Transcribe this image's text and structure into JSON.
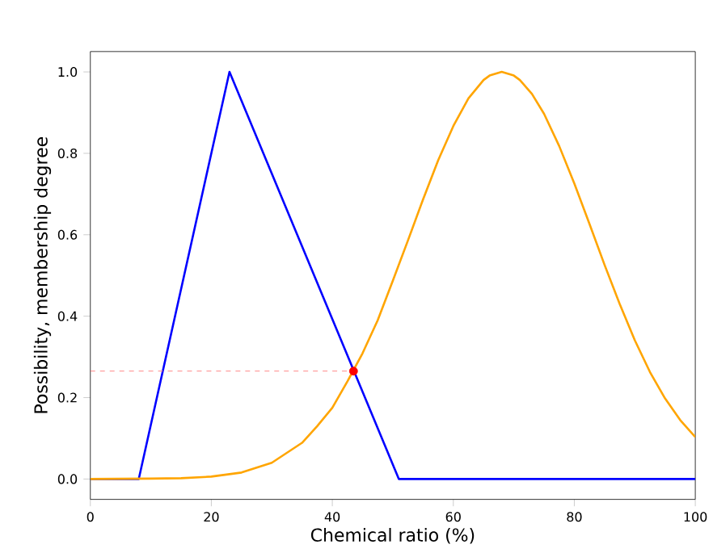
{
  "chart_data": {
    "type": "line",
    "xlabel": "Chemical ratio (%)",
    "ylabel": "Possibility, membership degree",
    "xlim": [
      0,
      100
    ],
    "ylim": [
      -0.05,
      1.05
    ],
    "xticks": [
      0,
      20,
      40,
      60,
      80,
      100
    ],
    "yticks": [
      {
        "value": 0,
        "label": "0.0"
      },
      {
        "value": 0.2,
        "label": "0.2"
      },
      {
        "value": 0.4,
        "label": "0.4"
      },
      {
        "value": 0.6,
        "label": "0.6"
      },
      {
        "value": 0.8,
        "label": "0.8"
      },
      {
        "value": 1,
        "label": "1.0"
      }
    ],
    "grid": false,
    "series": [
      {
        "color": "#0000ff",
        "x": [
          0,
          8,
          23,
          51,
          100
        ],
        "values": [
          0,
          0,
          1,
          0,
          0
        ]
      },
      {
        "color": "#ffa500",
        "x": [
          0,
          10,
          15,
          20,
          25,
          30,
          35,
          37.5,
          40,
          42.5,
          45,
          47.5,
          50,
          52.5,
          55,
          57.5,
          60,
          62.5,
          65,
          66,
          68,
          70,
          71,
          73,
          75,
          77.5,
          80,
          82.5,
          85,
          87.5,
          90,
          92.5,
          95,
          97.5,
          100
        ],
        "values": [
          0,
          0.001,
          0.002,
          0.006,
          0.016,
          0.04,
          0.089,
          0.13,
          0.175,
          0.24,
          0.309,
          0.39,
          0.487,
          0.586,
          0.687,
          0.783,
          0.867,
          0.935,
          0.98,
          0.991,
          1,
          0.991,
          0.98,
          0.946,
          0.897,
          0.818,
          0.726,
          0.627,
          0.526,
          0.43,
          0.341,
          0.263,
          0.198,
          0.145,
          0.103
        ]
      },
      {
        "color": "#ff8080",
        "line_style": "dashed",
        "x": [
          0,
          43.5
        ],
        "values": [
          0.265,
          0.265
        ]
      },
      {
        "type": "scatter",
        "color": "#ff0000",
        "marker": "circle",
        "x": [
          43.5
        ],
        "values": [
          0.265
        ]
      }
    ]
  }
}
